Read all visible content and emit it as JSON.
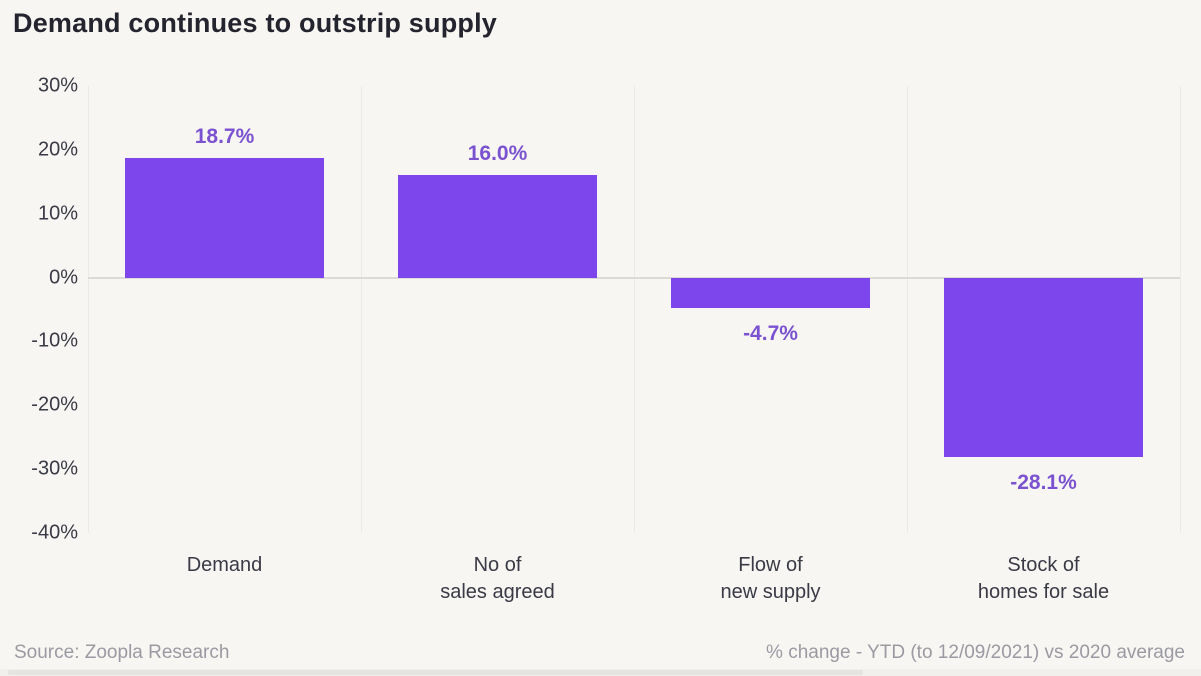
{
  "page": {
    "title": "Demand continues to outstrip supply",
    "source": "Source: Zoopla Research",
    "footnote": "% change - YTD (to 12/09/2021) vs 2020 average"
  },
  "colors": {
    "background": "#f7f6f2",
    "bar": "#7c46ec",
    "value_label": "#7b52d0",
    "title_text": "#24242f",
    "axis_text": "#3a3a46",
    "footer_text": "#9b9aa2",
    "gridline": "#eceae6",
    "zero_line": "#dcdad6"
  },
  "chart_data": {
    "type": "bar",
    "title": "Demand continues to outstrip supply",
    "categories": [
      "Demand",
      "No of sales agreed",
      "Flow of new supply",
      "Stock of homes for sale"
    ],
    "category_lines": [
      [
        "Demand"
      ],
      [
        "No of",
        "sales agreed"
      ],
      [
        "Flow of",
        "new supply"
      ],
      [
        "Stock of",
        "homes for sale"
      ]
    ],
    "values": [
      18.7,
      16.0,
      -4.7,
      -28.1
    ],
    "value_labels": [
      "18.7%",
      "16.0%",
      "-4.7%",
      "-28.1%"
    ],
    "ylim": [
      -40,
      30
    ],
    "ytick_values": [
      30,
      20,
      10,
      0,
      -10,
      -20,
      -30,
      -40
    ],
    "ytick_labels": [
      "30%",
      "20%",
      "10%",
      "0%",
      "-10%",
      "-20%",
      "-30%",
      "-40%"
    ],
    "xlabel": "",
    "ylabel": "",
    "legend": "none",
    "grid": "vertical category separators and zero line only",
    "source": "Source: Zoopla Research",
    "note": "% change - YTD (to 12/09/2021) vs 2020 average"
  }
}
